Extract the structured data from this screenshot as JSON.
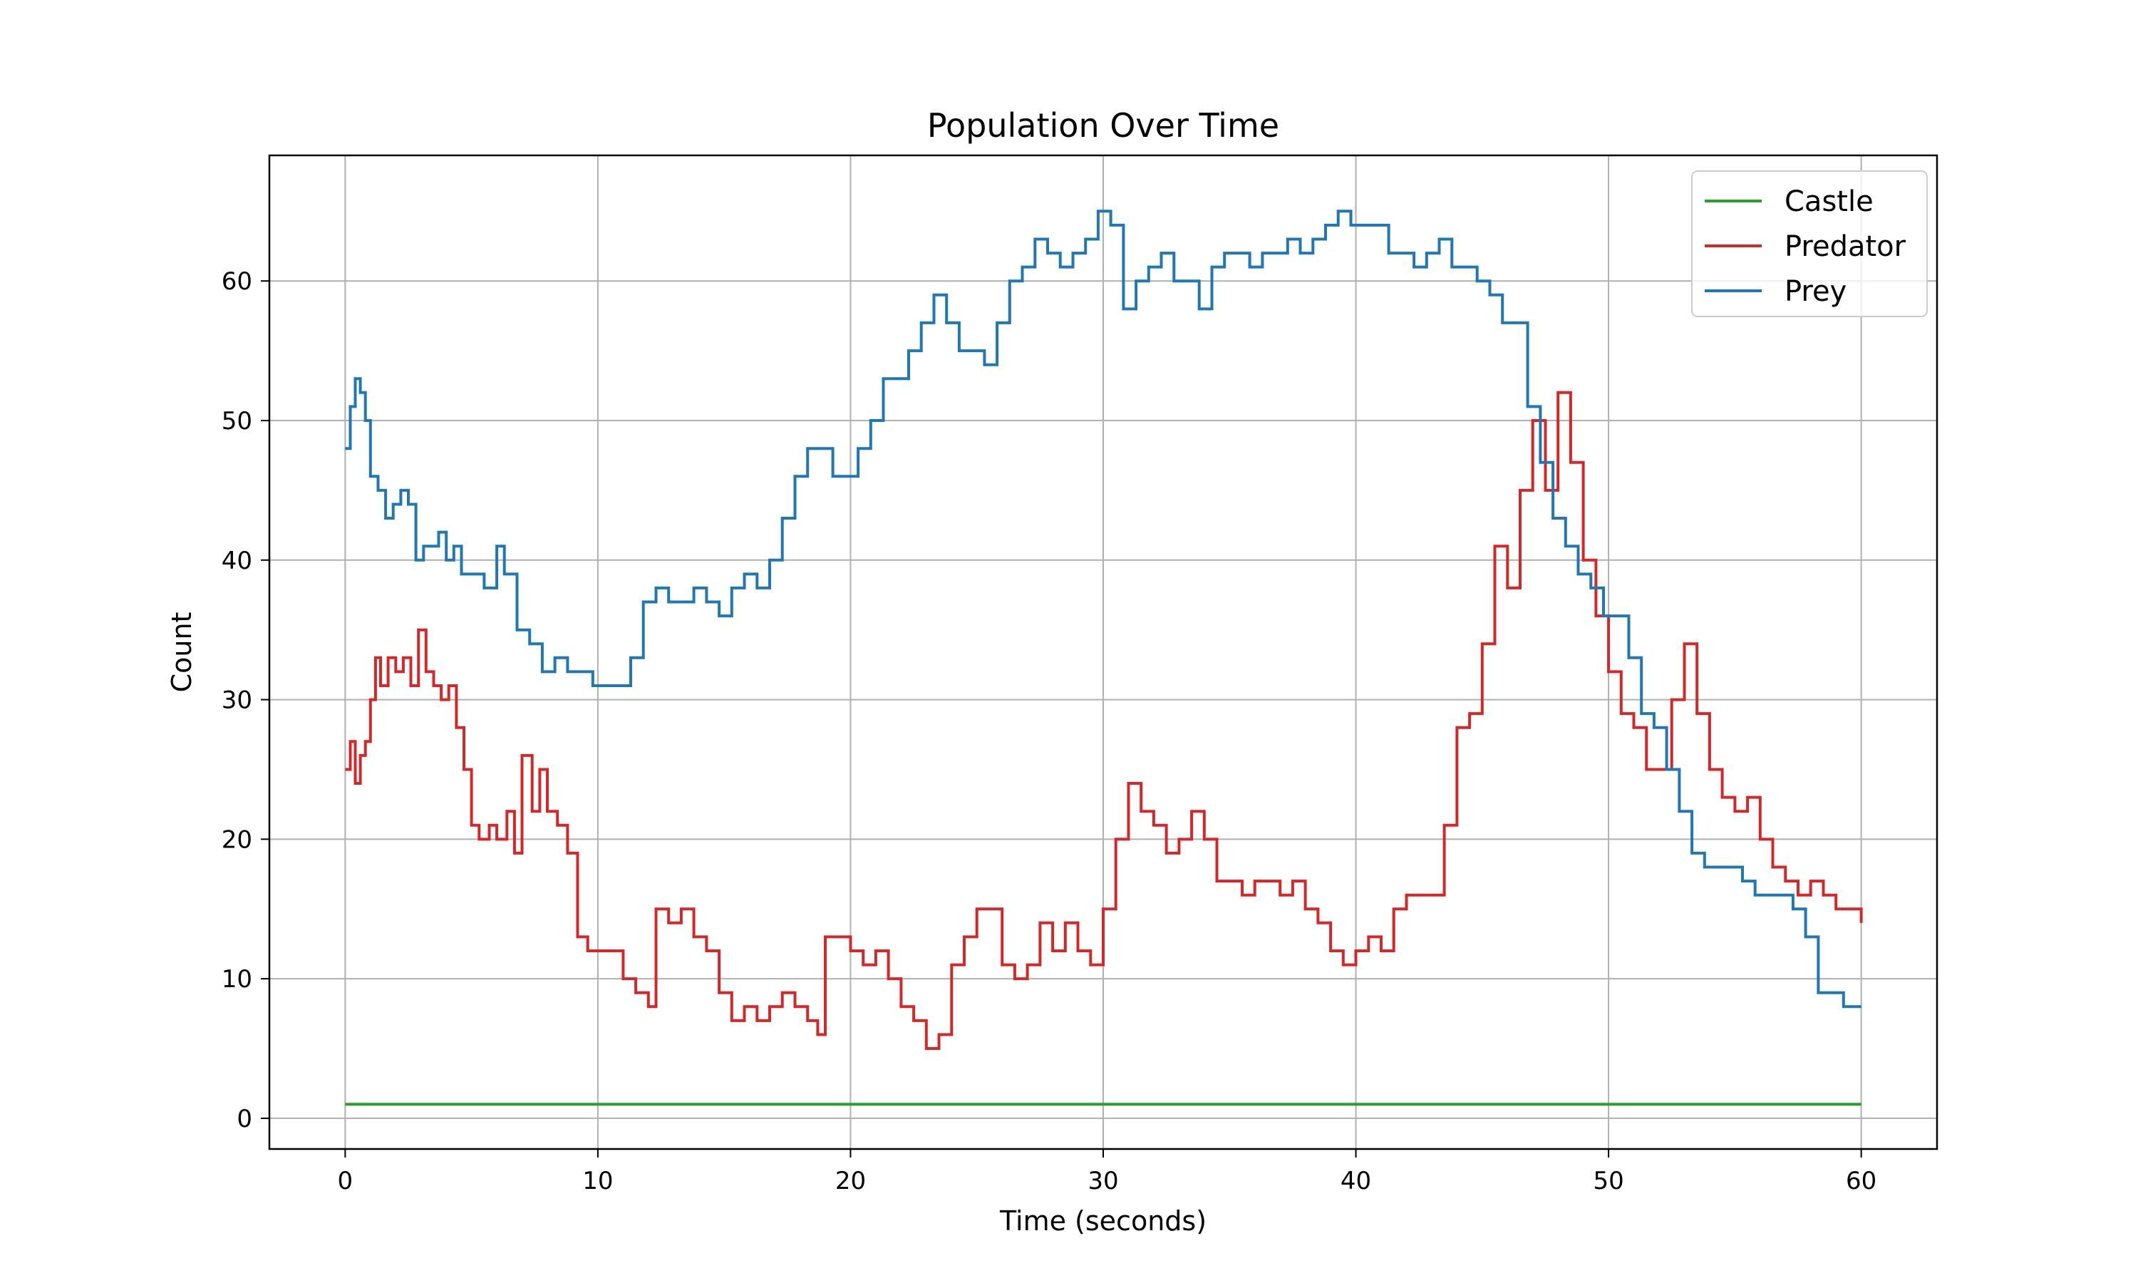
{
  "chart_data": {
    "type": "line",
    "title": "Population Over Time",
    "xlabel": "Time (seconds)",
    "ylabel": "Count",
    "xlim": [
      -3,
      63
    ],
    "ylim": [
      -2.2,
      69
    ],
    "xticks": [
      0,
      10,
      20,
      30,
      40,
      50,
      60
    ],
    "yticks": [
      0,
      10,
      20,
      30,
      40,
      50,
      60
    ],
    "grid": true,
    "legend_position": "top-right",
    "step": true,
    "series": [
      {
        "name": "Castle",
        "color": "#2ca02c",
        "points": [
          [
            0,
            1
          ],
          [
            60,
            1
          ]
        ]
      },
      {
        "name": "Predator",
        "color": "#d62728",
        "points": [
          [
            0,
            25
          ],
          [
            0.2,
            27
          ],
          [
            0.4,
            24
          ],
          [
            0.6,
            26
          ],
          [
            0.8,
            27
          ],
          [
            1.0,
            30
          ],
          [
            1.2,
            33
          ],
          [
            1.4,
            31
          ],
          [
            1.7,
            33
          ],
          [
            2.0,
            32
          ],
          [
            2.3,
            33
          ],
          [
            2.6,
            31
          ],
          [
            2.9,
            35
          ],
          [
            3.2,
            32
          ],
          [
            3.5,
            31
          ],
          [
            3.8,
            30
          ],
          [
            4.1,
            31
          ],
          [
            4.4,
            28
          ],
          [
            4.7,
            25
          ],
          [
            5.0,
            21
          ],
          [
            5.3,
            20
          ],
          [
            5.7,
            21
          ],
          [
            6.0,
            20
          ],
          [
            6.4,
            22
          ],
          [
            6.7,
            19
          ],
          [
            7.0,
            26
          ],
          [
            7.4,
            22
          ],
          [
            7.7,
            25
          ],
          [
            8.0,
            22
          ],
          [
            8.4,
            21
          ],
          [
            8.8,
            19
          ],
          [
            9.2,
            13
          ],
          [
            9.6,
            12
          ],
          [
            10.0,
            12
          ],
          [
            10.5,
            12
          ],
          [
            11.0,
            10
          ],
          [
            11.5,
            9
          ],
          [
            12.0,
            8
          ],
          [
            12.3,
            15
          ],
          [
            12.8,
            14
          ],
          [
            13.3,
            15
          ],
          [
            13.8,
            13
          ],
          [
            14.3,
            12
          ],
          [
            14.8,
            9
          ],
          [
            15.3,
            7
          ],
          [
            15.8,
            8
          ],
          [
            16.3,
            7
          ],
          [
            16.8,
            8
          ],
          [
            17.3,
            9
          ],
          [
            17.8,
            8
          ],
          [
            18.3,
            7
          ],
          [
            18.7,
            6
          ],
          [
            19.0,
            13
          ],
          [
            19.5,
            13
          ],
          [
            20.0,
            12
          ],
          [
            20.5,
            11
          ],
          [
            21.0,
            12
          ],
          [
            21.5,
            10
          ],
          [
            22.0,
            8
          ],
          [
            22.5,
            7
          ],
          [
            23.0,
            5
          ],
          [
            23.5,
            6
          ],
          [
            24.0,
            11
          ],
          [
            24.5,
            13
          ],
          [
            25.0,
            15
          ],
          [
            25.5,
            15
          ],
          [
            26.0,
            11
          ],
          [
            26.5,
            10
          ],
          [
            27.0,
            11
          ],
          [
            27.5,
            14
          ],
          [
            28.0,
            12
          ],
          [
            28.5,
            14
          ],
          [
            29.0,
            12
          ],
          [
            29.5,
            11
          ],
          [
            30.0,
            15
          ],
          [
            30.5,
            20
          ],
          [
            31.0,
            24
          ],
          [
            31.5,
            22
          ],
          [
            32.0,
            21
          ],
          [
            32.5,
            19
          ],
          [
            33.0,
            20
          ],
          [
            33.5,
            22
          ],
          [
            34.0,
            20
          ],
          [
            34.5,
            17
          ],
          [
            35.0,
            17
          ],
          [
            35.5,
            16
          ],
          [
            36.0,
            17
          ],
          [
            36.5,
            17
          ],
          [
            37.0,
            16
          ],
          [
            37.5,
            17
          ],
          [
            38.0,
            15
          ],
          [
            38.5,
            14
          ],
          [
            39.0,
            12
          ],
          [
            39.5,
            11
          ],
          [
            40.0,
            12
          ],
          [
            40.5,
            13
          ],
          [
            41.0,
            12
          ],
          [
            41.5,
            15
          ],
          [
            42.0,
            16
          ],
          [
            42.5,
            16
          ],
          [
            43.0,
            16
          ],
          [
            43.5,
            21
          ],
          [
            44.0,
            28
          ],
          [
            44.5,
            29
          ],
          [
            45.0,
            34
          ],
          [
            45.5,
            41
          ],
          [
            46.0,
            38
          ],
          [
            46.5,
            45
          ],
          [
            47.0,
            50
          ],
          [
            47.5,
            45
          ],
          [
            48.0,
            52
          ],
          [
            48.5,
            47
          ],
          [
            49.0,
            40
          ],
          [
            49.5,
            36
          ],
          [
            50.0,
            32
          ],
          [
            50.5,
            29
          ],
          [
            51.0,
            28
          ],
          [
            51.5,
            25
          ],
          [
            52.0,
            25
          ],
          [
            52.5,
            30
          ],
          [
            53.0,
            34
          ],
          [
            53.5,
            29
          ],
          [
            54.0,
            25
          ],
          [
            54.5,
            23
          ],
          [
            55.0,
            22
          ],
          [
            55.5,
            23
          ],
          [
            56.0,
            20
          ],
          [
            56.5,
            18
          ],
          [
            57.0,
            17
          ],
          [
            57.5,
            16
          ],
          [
            58.0,
            17
          ],
          [
            58.5,
            16
          ],
          [
            59.0,
            15
          ],
          [
            59.5,
            15
          ],
          [
            60.0,
            14
          ]
        ]
      },
      {
        "name": "Prey",
        "color": "#1f77b4",
        "points": [
          [
            0,
            48
          ],
          [
            0.2,
            51
          ],
          [
            0.4,
            53
          ],
          [
            0.6,
            52
          ],
          [
            0.8,
            50
          ],
          [
            1.0,
            46
          ],
          [
            1.3,
            45
          ],
          [
            1.6,
            43
          ],
          [
            1.9,
            44
          ],
          [
            2.2,
            45
          ],
          [
            2.5,
            44
          ],
          [
            2.8,
            40
          ],
          [
            3.1,
            41
          ],
          [
            3.4,
            41
          ],
          [
            3.7,
            42
          ],
          [
            4.0,
            40
          ],
          [
            4.3,
            41
          ],
          [
            4.6,
            39
          ],
          [
            5.0,
            39
          ],
          [
            5.5,
            38
          ],
          [
            6.0,
            41
          ],
          [
            6.3,
            39
          ],
          [
            6.8,
            35
          ],
          [
            7.3,
            34
          ],
          [
            7.8,
            32
          ],
          [
            8.3,
            33
          ],
          [
            8.8,
            32
          ],
          [
            9.3,
            32
          ],
          [
            9.8,
            31
          ],
          [
            10.3,
            31
          ],
          [
            10.8,
            31
          ],
          [
            11.3,
            33
          ],
          [
            11.8,
            37
          ],
          [
            12.3,
            38
          ],
          [
            12.8,
            37
          ],
          [
            13.3,
            37
          ],
          [
            13.8,
            38
          ],
          [
            14.3,
            37
          ],
          [
            14.8,
            36
          ],
          [
            15.3,
            38
          ],
          [
            15.8,
            39
          ],
          [
            16.3,
            38
          ],
          [
            16.8,
            40
          ],
          [
            17.3,
            43
          ],
          [
            17.8,
            46
          ],
          [
            18.3,
            48
          ],
          [
            18.8,
            48
          ],
          [
            19.3,
            46
          ],
          [
            19.8,
            46
          ],
          [
            20.3,
            48
          ],
          [
            20.8,
            50
          ],
          [
            21.3,
            53
          ],
          [
            21.8,
            53
          ],
          [
            22.3,
            55
          ],
          [
            22.8,
            57
          ],
          [
            23.3,
            59
          ],
          [
            23.8,
            57
          ],
          [
            24.3,
            55
          ],
          [
            24.8,
            55
          ],
          [
            25.3,
            54
          ],
          [
            25.8,
            57
          ],
          [
            26.3,
            60
          ],
          [
            26.8,
            61
          ],
          [
            27.3,
            63
          ],
          [
            27.8,
            62
          ],
          [
            28.3,
            61
          ],
          [
            28.8,
            62
          ],
          [
            29.3,
            63
          ],
          [
            29.8,
            65
          ],
          [
            30.3,
            64
          ],
          [
            30.8,
            58
          ],
          [
            31.3,
            60
          ],
          [
            31.8,
            61
          ],
          [
            32.3,
            62
          ],
          [
            32.8,
            60
          ],
          [
            33.3,
            60
          ],
          [
            33.8,
            58
          ],
          [
            34.3,
            61
          ],
          [
            34.8,
            62
          ],
          [
            35.3,
            62
          ],
          [
            35.8,
            61
          ],
          [
            36.3,
            62
          ],
          [
            36.8,
            62
          ],
          [
            37.3,
            63
          ],
          [
            37.8,
            62
          ],
          [
            38.3,
            63
          ],
          [
            38.8,
            64
          ],
          [
            39.3,
            65
          ],
          [
            39.8,
            64
          ],
          [
            40.3,
            64
          ],
          [
            40.8,
            64
          ],
          [
            41.3,
            62
          ],
          [
            41.8,
            62
          ],
          [
            42.3,
            61
          ],
          [
            42.8,
            62
          ],
          [
            43.3,
            63
          ],
          [
            43.8,
            61
          ],
          [
            44.3,
            61
          ],
          [
            44.8,
            60
          ],
          [
            45.3,
            59
          ],
          [
            45.8,
            57
          ],
          [
            46.3,
            57
          ],
          [
            46.8,
            51
          ],
          [
            47.3,
            47
          ],
          [
            47.8,
            43
          ],
          [
            48.3,
            41
          ],
          [
            48.8,
            39
          ],
          [
            49.3,
            38
          ],
          [
            49.8,
            36
          ],
          [
            50.3,
            36
          ],
          [
            50.8,
            33
          ],
          [
            51.3,
            29
          ],
          [
            51.8,
            28
          ],
          [
            52.3,
            25
          ],
          [
            52.8,
            22
          ],
          [
            53.3,
            19
          ],
          [
            53.8,
            18
          ],
          [
            54.3,
            18
          ],
          [
            54.8,
            18
          ],
          [
            55.3,
            17
          ],
          [
            55.8,
            16
          ],
          [
            56.3,
            16
          ],
          [
            56.8,
            16
          ],
          [
            57.3,
            15
          ],
          [
            57.8,
            13
          ],
          [
            58.3,
            9
          ],
          [
            58.8,
            9
          ],
          [
            59.3,
            8
          ],
          [
            60.0,
            8
          ]
        ]
      }
    ]
  }
}
